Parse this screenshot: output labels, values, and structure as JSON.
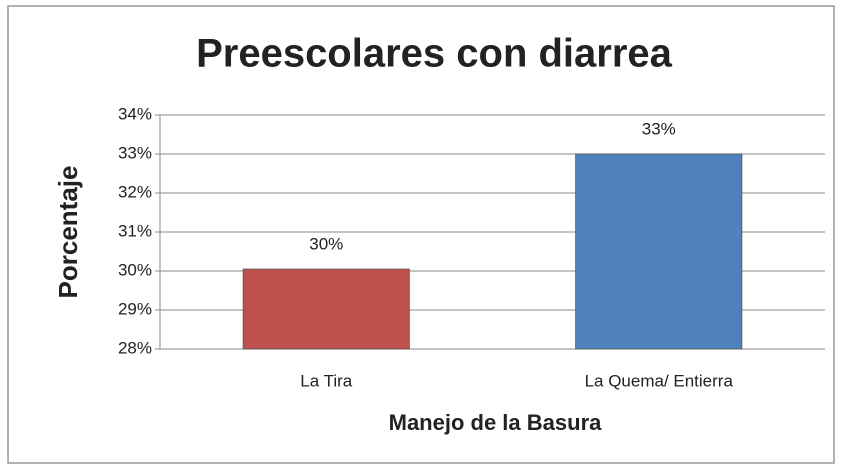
{
  "chart_data": {
    "type": "bar",
    "title": "Preescolares con diarrea",
    "x_label": "Manejo de la Basura",
    "y_label": "Porcentaje",
    "categories": [
      "La Tira",
      "La Quema/ Entierra"
    ],
    "values": [
      30.05,
      33
    ],
    "value_labels": [
      "30%",
      "33%"
    ],
    "colors": [
      "#c0504d",
      "#4f81bd"
    ],
    "ylim": [
      28,
      34
    ],
    "yticks": [
      {
        "value": 28,
        "label": "28%"
      },
      {
        "value": 29,
        "label": "29%"
      },
      {
        "value": 30,
        "label": "30%"
      },
      {
        "value": 31,
        "label": "31%"
      },
      {
        "value": 32,
        "label": "32%"
      },
      {
        "value": 33,
        "label": "33%"
      },
      {
        "value": 34,
        "label": "34%"
      }
    ],
    "grid": true
  }
}
